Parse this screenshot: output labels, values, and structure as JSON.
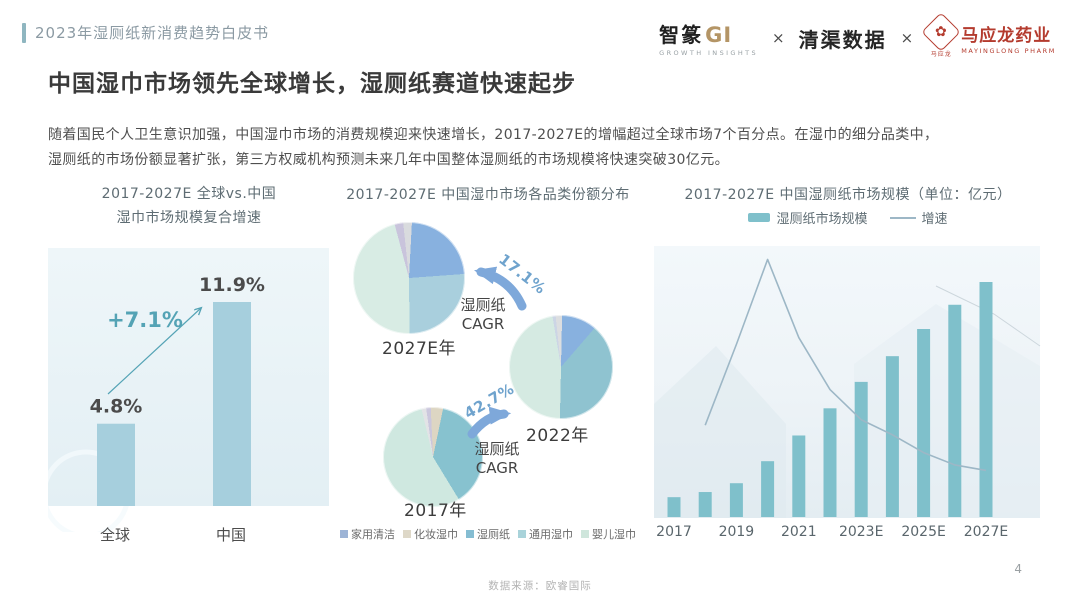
{
  "header": {
    "breadcrumb": "2023年湿厕纸新消费趋势白皮书",
    "logos": {
      "zhizhuan_name": "智篆",
      "zhizhuan_gi": "GI",
      "zhizhuan_sub": "GROWTH INSIGHTS",
      "cross1": "×",
      "qingqu": "清渠数据",
      "cross2": "×",
      "mayinglong_seal_glyph": "✿",
      "mayinglong_seal_text": "马应龙",
      "mayinglong_name": "马应龙药业",
      "mayinglong_sub": "MAYINGLONG PHARM",
      "mayinglong_color": "#b43b2e"
    }
  },
  "title": "中国湿巾市场领先全球增长，湿厕纸赛道快速起步",
  "paragraph_line1": "随着国民个人卫生意识加强，中国湿巾市场的消费规模迎来快速增长，2017-2027E的增幅超过全球市场7个百分点。在湿巾的细分品类中，",
  "paragraph_line2": "湿厕纸的市场份额显著扩张，第三方权威机构预测未来几年中国整体湿厕纸的市场规模将快速突破30亿元。",
  "chart_data": [
    {
      "type": "bar",
      "title_line1": "2017-2027E 全球vs.中国",
      "title_line2": "湿巾市场规模复合增速",
      "categories": [
        "全球",
        "中国"
      ],
      "values": [
        4.8,
        11.9
      ],
      "value_labels": [
        "4.8%",
        "11.9%"
      ],
      "delta_label": "+7.1%",
      "ylim": [
        0,
        13
      ],
      "bar_color": "#a6cfdd",
      "accent_color": "#54a3b5",
      "panel_bg_top": "#eef6f9",
      "panel_bg_bottom": "#e3eff4"
    },
    {
      "type": "pie",
      "title": "2017-2027E 中国湿巾市场各品类份额分布",
      "legend": [
        {
          "label": "家用清洁",
          "color": "#9db4d6"
        },
        {
          "label": "化妆湿巾",
          "color": "#ded8c8"
        },
        {
          "label": "湿厕纸",
          "color": "#85bdd2"
        },
        {
          "label": "通用湿巾",
          "color": "#a9d3da"
        },
        {
          "label": "婴儿湿巾",
          "color": "#cfe6dc"
        }
      ],
      "pies": [
        {
          "label": "2027E年",
          "start_deg": -6,
          "slices": [
            {
              "color": "#d9dbde",
              "value": 2.5
            },
            {
              "color": "#88b1df",
              "value": 23
            },
            {
              "color": "#a9cfdd",
              "value": 26
            },
            {
              "color": "#d8ece4",
              "value": 46
            },
            {
              "color": "#c9c4dc",
              "value": 2.5
            }
          ]
        },
        {
          "label": "2022年",
          "start_deg": -6,
          "slices": [
            {
              "color": "#dcdee0",
              "value": 2
            },
            {
              "color": "#88b1df",
              "value": 11
            },
            {
              "color": "#8fc3d0",
              "value": 39
            },
            {
              "color": "#d5eae2",
              "value": 47
            },
            {
              "color": "#ccd5e5",
              "value": 1
            }
          ]
        },
        {
          "label": "2017年",
          "start_deg": -8,
          "slices": [
            {
              "color": "#cbc7dd",
              "value": 1.5
            },
            {
              "color": "#ddd6c3",
              "value": 4
            },
            {
              "color": "#87c2cf",
              "value": 38
            },
            {
              "color": "#cfe8e0",
              "value": 55
            },
            {
              "color": "#e2e3e6",
              "value": 1.5
            }
          ]
        }
      ],
      "annotations": {
        "cagr1_pct": "17.1%",
        "cagr2_pct": "42.7%",
        "cagr_l1": "湿厕纸",
        "cagr_l2": "CAGR",
        "arrow_color": "#7ea8da"
      }
    },
    {
      "type": "bar+line",
      "title": "2017-2027E 中国湿厕纸市场规模（单位：亿元）",
      "categories": [
        "2017",
        "2018",
        "2019",
        "2020",
        "2021",
        "2022",
        "2023E",
        "2024E",
        "2025E",
        "2026E",
        "2027E"
      ],
      "x_tick_labels": [
        "2017",
        "2019",
        "2021",
        "2023E",
        "2025E",
        "2027E"
      ],
      "series": [
        {
          "name": "湿厕纸市场规模",
          "type": "bar",
          "values": [
            2.7,
            3.4,
            4.6,
            7.6,
            11.1,
            14.8,
            18.4,
            21.9,
            25.6,
            28.9,
            32
          ],
          "color": "#7fc0cb"
        },
        {
          "name": "增速",
          "type": "line",
          "values": [
            null,
            33.5,
            63,
            94,
            65.5,
            46.5,
            35.5,
            30,
            23.5,
            19,
            17
          ],
          "color": "#9db7c6"
        }
      ],
      "ylim": [
        0,
        35
      ]
    }
  ],
  "footer": {
    "source": "数据来源：欧睿国际",
    "page": "4"
  }
}
